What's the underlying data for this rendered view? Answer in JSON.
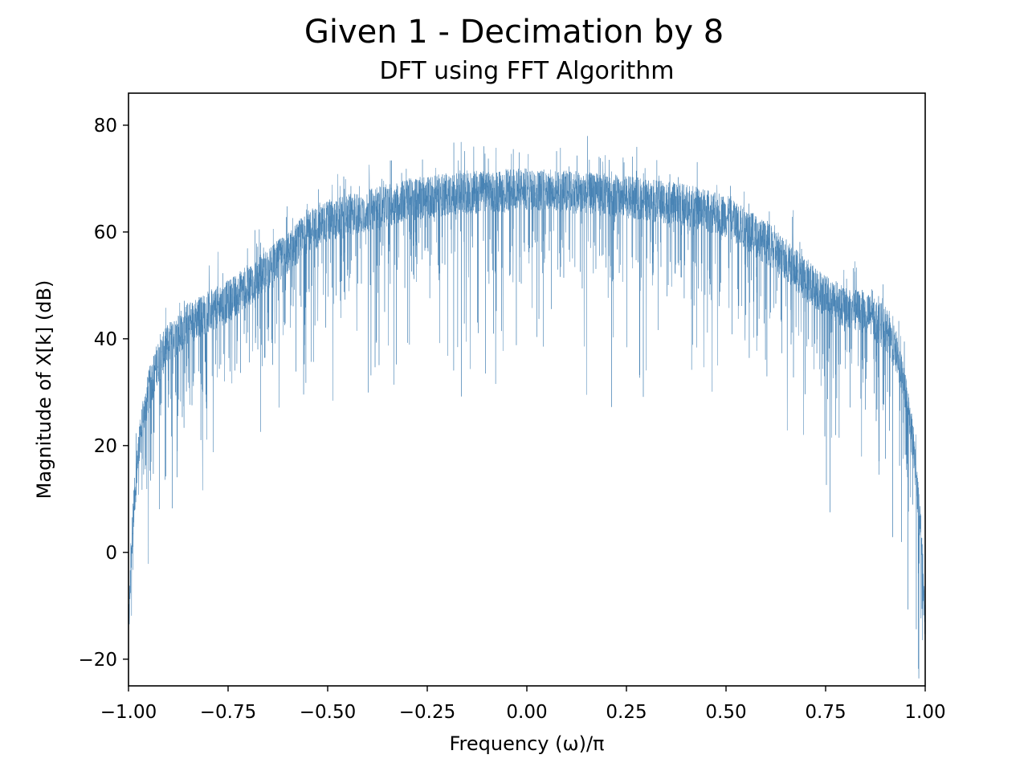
{
  "figure": {
    "suptitle": "Given 1 - Decimation by 8"
  },
  "chart_data": {
    "type": "line",
    "title": "DFT using FFT Algorithm",
    "xlabel": "Frequency (ω)/π",
    "ylabel": "Magnitude of X[k] (dB)",
    "xlim": [
      -1.0,
      1.0
    ],
    "ylim": [
      -25,
      86
    ],
    "x_ticks": [
      -1.0,
      -0.75,
      -0.5,
      -0.25,
      0.0,
      0.25,
      0.5,
      0.75,
      1.0
    ],
    "x_tick_labels": [
      "−1.00",
      "−0.75",
      "−0.50",
      "−0.25",
      "0.00",
      "0.25",
      "0.50",
      "0.75",
      "1.00"
    ],
    "y_ticks": [
      -20,
      0,
      20,
      40,
      60,
      80
    ],
    "y_tick_labels": [
      "−20",
      "0",
      "20",
      "40",
      "60",
      "80"
    ],
    "grid": false,
    "line_color": "#4682b4",
    "series": [
      {
        "note_envelope": "noisy dense spectrum; values below are the approximate mean envelope",
        "x": [
          -1.0,
          -0.99,
          -0.98,
          -0.97,
          -0.95,
          -0.93,
          -0.9,
          -0.85,
          -0.8,
          -0.75,
          -0.7,
          -0.65,
          -0.6,
          -0.55,
          -0.5,
          -0.4,
          -0.3,
          -0.2,
          -0.1,
          0.0,
          0.1,
          0.2,
          0.3,
          0.4,
          0.5,
          0.6,
          0.65,
          0.7,
          0.75,
          0.8,
          0.85,
          0.9,
          0.93,
          0.95,
          0.97,
          0.98,
          0.99,
          1.0
        ],
        "y": [
          -15,
          5,
          15,
          22,
          30,
          35,
          39,
          43,
          45,
          47,
          50,
          53,
          56,
          60,
          62,
          64,
          66,
          67,
          67.5,
          68,
          67.5,
          67,
          66,
          65,
          63,
          58,
          55,
          51,
          48,
          46,
          45,
          42,
          37,
          30,
          20,
          12,
          3,
          -15
        ]
      }
    ]
  }
}
